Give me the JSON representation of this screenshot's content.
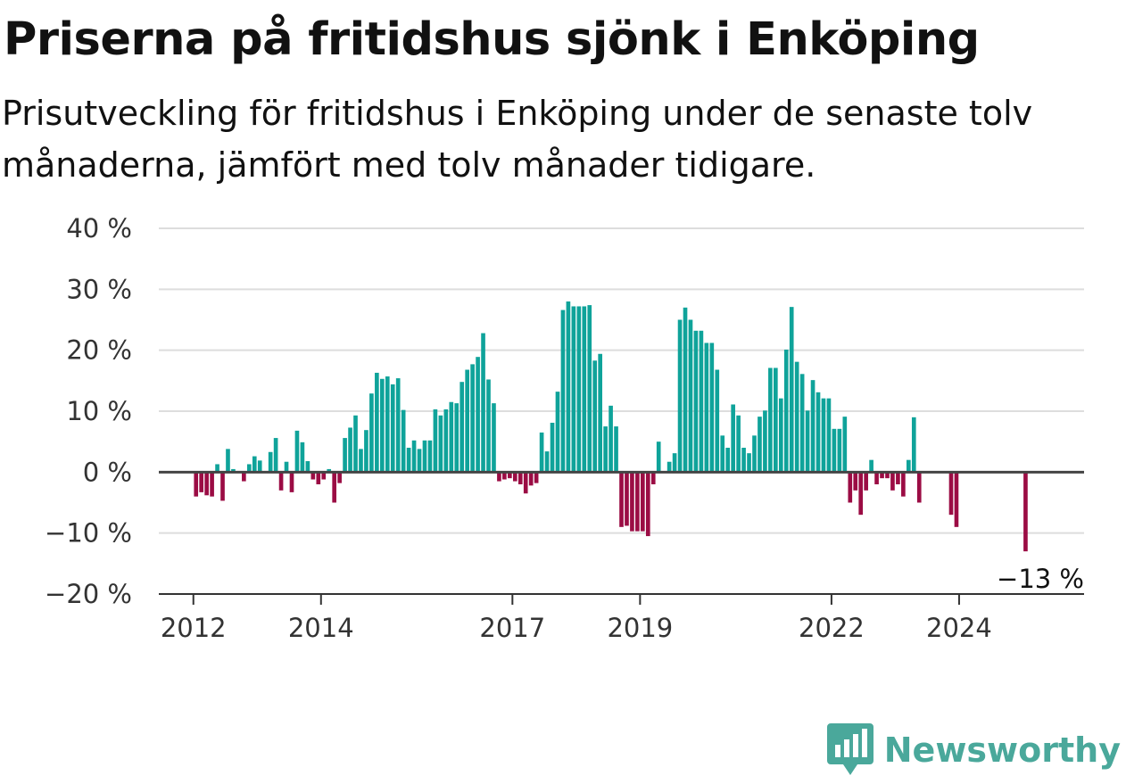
{
  "title": "Priserna på fritidshus sjönk i Enköping",
  "subtitle": "Prisutveckling för fritidshus i Enköping under de senaste tolv månaderna, jämfört med tolv månader tidigare.",
  "brand": {
    "name": "Newsworthy",
    "icon": "newsworthy-logo-icon",
    "color": "#4aa89b"
  },
  "colors": {
    "positive": "#0fa39a",
    "negative": "#9b0c44",
    "grid": "#dddddd",
    "zero_line": "#444444",
    "axis": "#333333"
  },
  "chart_data": {
    "type": "bar",
    "title": "Priserna på fritidshus sjönk i Enköping",
    "subtitle": "Prisutveckling för fritidshus i Enköping under de senaste tolv månaderna, jämfört med tolv månader tidigare.",
    "x_range": [
      "2011-06",
      "2025-12"
    ],
    "ylim": [
      -20,
      40
    ],
    "y_ticks": [
      -20,
      -10,
      0,
      10,
      20,
      30,
      40
    ],
    "y_tick_labels": [
      "−20 %",
      "−10 %",
      "0 %",
      "10 %",
      "20 %",
      "30 %",
      "40 %"
    ],
    "x_ticks": [
      "2012-01",
      "2014-01",
      "2017-01",
      "2019-01",
      "2022-01",
      "2024-01"
    ],
    "x_tick_labels": [
      "2012",
      "2014",
      "2017",
      "2019",
      "2022",
      "2024"
    ],
    "grid": true,
    "annotation": {
      "text": "−13 %",
      "x": "2025-01",
      "y": -13
    },
    "values": [
      [
        "2012-01",
        -4
      ],
      [
        "2012-02",
        -3.3
      ],
      [
        "2012-03",
        -3.8
      ],
      [
        "2012-04",
        -4
      ],
      [
        "2012-05",
        1.3
      ],
      [
        "2012-06",
        -4.7
      ],
      [
        "2012-07",
        3.8
      ],
      [
        "2012-08",
        0.5
      ],
      [
        "2012-10",
        -1.5
      ],
      [
        "2012-11",
        1.3
      ],
      [
        "2012-12",
        2.6
      ],
      [
        "2013-01",
        1.9
      ],
      [
        "2013-03",
        3.3
      ],
      [
        "2013-04",
        5.6
      ],
      [
        "2013-05",
        -3
      ],
      [
        "2013-06",
        1.7
      ],
      [
        "2013-07",
        -3.3
      ],
      [
        "2013-08",
        6.8
      ],
      [
        "2013-09",
        4.9
      ],
      [
        "2013-10",
        1.8
      ],
      [
        "2013-11",
        -1.2
      ],
      [
        "2013-12",
        -2
      ],
      [
        "2014-01",
        -1.2
      ],
      [
        "2014-02",
        0.5
      ],
      [
        "2014-03",
        -5
      ],
      [
        "2014-04",
        -1.8
      ],
      [
        "2014-05",
        5.6
      ],
      [
        "2014-06",
        7.3
      ],
      [
        "2014-07",
        9.3
      ],
      [
        "2014-08",
        3.8
      ],
      [
        "2014-09",
        6.9
      ],
      [
        "2014-10",
        12.9
      ],
      [
        "2014-11",
        16.3
      ],
      [
        "2014-12",
        15.3
      ],
      [
        "2015-01",
        15.7
      ],
      [
        "2015-02",
        14.4
      ],
      [
        "2015-03",
        15.4
      ],
      [
        "2015-04",
        10.2
      ],
      [
        "2015-05",
        4
      ],
      [
        "2015-06",
        5.2
      ],
      [
        "2015-07",
        3.8
      ],
      [
        "2015-08",
        5.2
      ],
      [
        "2015-09",
        5.2
      ],
      [
        "2015-10",
        10.3
      ],
      [
        "2015-11",
        9.3
      ],
      [
        "2015-12",
        10.3
      ],
      [
        "2016-01",
        11.5
      ],
      [
        "2016-02",
        11.3
      ],
      [
        "2016-03",
        14.8
      ],
      [
        "2016-04",
        16.8
      ],
      [
        "2016-05",
        17.7
      ],
      [
        "2016-06",
        18.9
      ],
      [
        "2016-07",
        22.8
      ],
      [
        "2016-08",
        15.2
      ],
      [
        "2016-09",
        11.3
      ],
      [
        "2016-10",
        -1.5
      ],
      [
        "2016-11",
        -1.2
      ],
      [
        "2016-12",
        -1
      ],
      [
        "2017-01",
        -1.5
      ],
      [
        "2017-02",
        -2
      ],
      [
        "2017-03",
        -3.5
      ],
      [
        "2017-04",
        -2.2
      ],
      [
        "2017-05",
        -1.8
      ],
      [
        "2017-06",
        6.5
      ],
      [
        "2017-07",
        3.4
      ],
      [
        "2017-08",
        8.1
      ],
      [
        "2017-09",
        13.2
      ],
      [
        "2017-10",
        26.6
      ],
      [
        "2017-11",
        28
      ],
      [
        "2017-12",
        27.2
      ],
      [
        "2018-01",
        27.2
      ],
      [
        "2018-02",
        27.2
      ],
      [
        "2018-03",
        27.4
      ],
      [
        "2018-04",
        18.3
      ],
      [
        "2018-05",
        19.4
      ],
      [
        "2018-06",
        7.5
      ],
      [
        "2018-07",
        10.9
      ],
      [
        "2018-08",
        7.5
      ],
      [
        "2018-09",
        -9
      ],
      [
        "2018-10",
        -8.8
      ],
      [
        "2018-11",
        -9.7
      ],
      [
        "2018-12",
        -9.7
      ],
      [
        "2019-01",
        -9.7
      ],
      [
        "2019-02",
        -10.5
      ],
      [
        "2019-03",
        -2
      ],
      [
        "2019-04",
        5
      ],
      [
        "2019-06",
        1.7
      ],
      [
        "2019-07",
        3.1
      ],
      [
        "2019-08",
        25
      ],
      [
        "2019-09",
        27
      ],
      [
        "2019-10",
        25
      ],
      [
        "2019-11",
        23.2
      ],
      [
        "2019-12",
        23.2
      ],
      [
        "2020-01",
        21.2
      ],
      [
        "2020-02",
        21.2
      ],
      [
        "2020-03",
        16.8
      ],
      [
        "2020-04",
        6
      ],
      [
        "2020-05",
        4
      ],
      [
        "2020-06",
        11.1
      ],
      [
        "2020-07",
        9.3
      ],
      [
        "2020-08",
        4
      ],
      [
        "2020-09",
        3.1
      ],
      [
        "2020-10",
        6
      ],
      [
        "2020-11",
        9.1
      ],
      [
        "2020-12",
        10.1
      ],
      [
        "2021-01",
        17.1
      ],
      [
        "2021-02",
        17.1
      ],
      [
        "2021-03",
        12.1
      ],
      [
        "2021-04",
        20.1
      ],
      [
        "2021-05",
        27.1
      ],
      [
        "2021-06",
        18.1
      ],
      [
        "2021-07",
        16.1
      ],
      [
        "2021-08",
        10.1
      ],
      [
        "2021-09",
        15.1
      ],
      [
        "2021-10",
        13.1
      ],
      [
        "2021-11",
        12.1
      ],
      [
        "2021-12",
        12.1
      ],
      [
        "2022-01",
        7.1
      ],
      [
        "2022-02",
        7.1
      ],
      [
        "2022-03",
        9.1
      ],
      [
        "2022-04",
        -5
      ],
      [
        "2022-05",
        -3
      ],
      [
        "2022-06",
        -7
      ],
      [
        "2022-07",
        -3
      ],
      [
        "2022-08",
        2
      ],
      [
        "2022-09",
        -2
      ],
      [
        "2022-10",
        -1
      ],
      [
        "2022-11",
        -1
      ],
      [
        "2022-12",
        -3
      ],
      [
        "2023-01",
        -2
      ],
      [
        "2023-02",
        -4
      ],
      [
        "2023-03",
        2
      ],
      [
        "2023-04",
        9
      ],
      [
        "2023-05",
        -5
      ],
      [
        "2023-11",
        -7
      ],
      [
        "2023-12",
        -9
      ],
      [
        "2025-01",
        -13
      ]
    ]
  }
}
